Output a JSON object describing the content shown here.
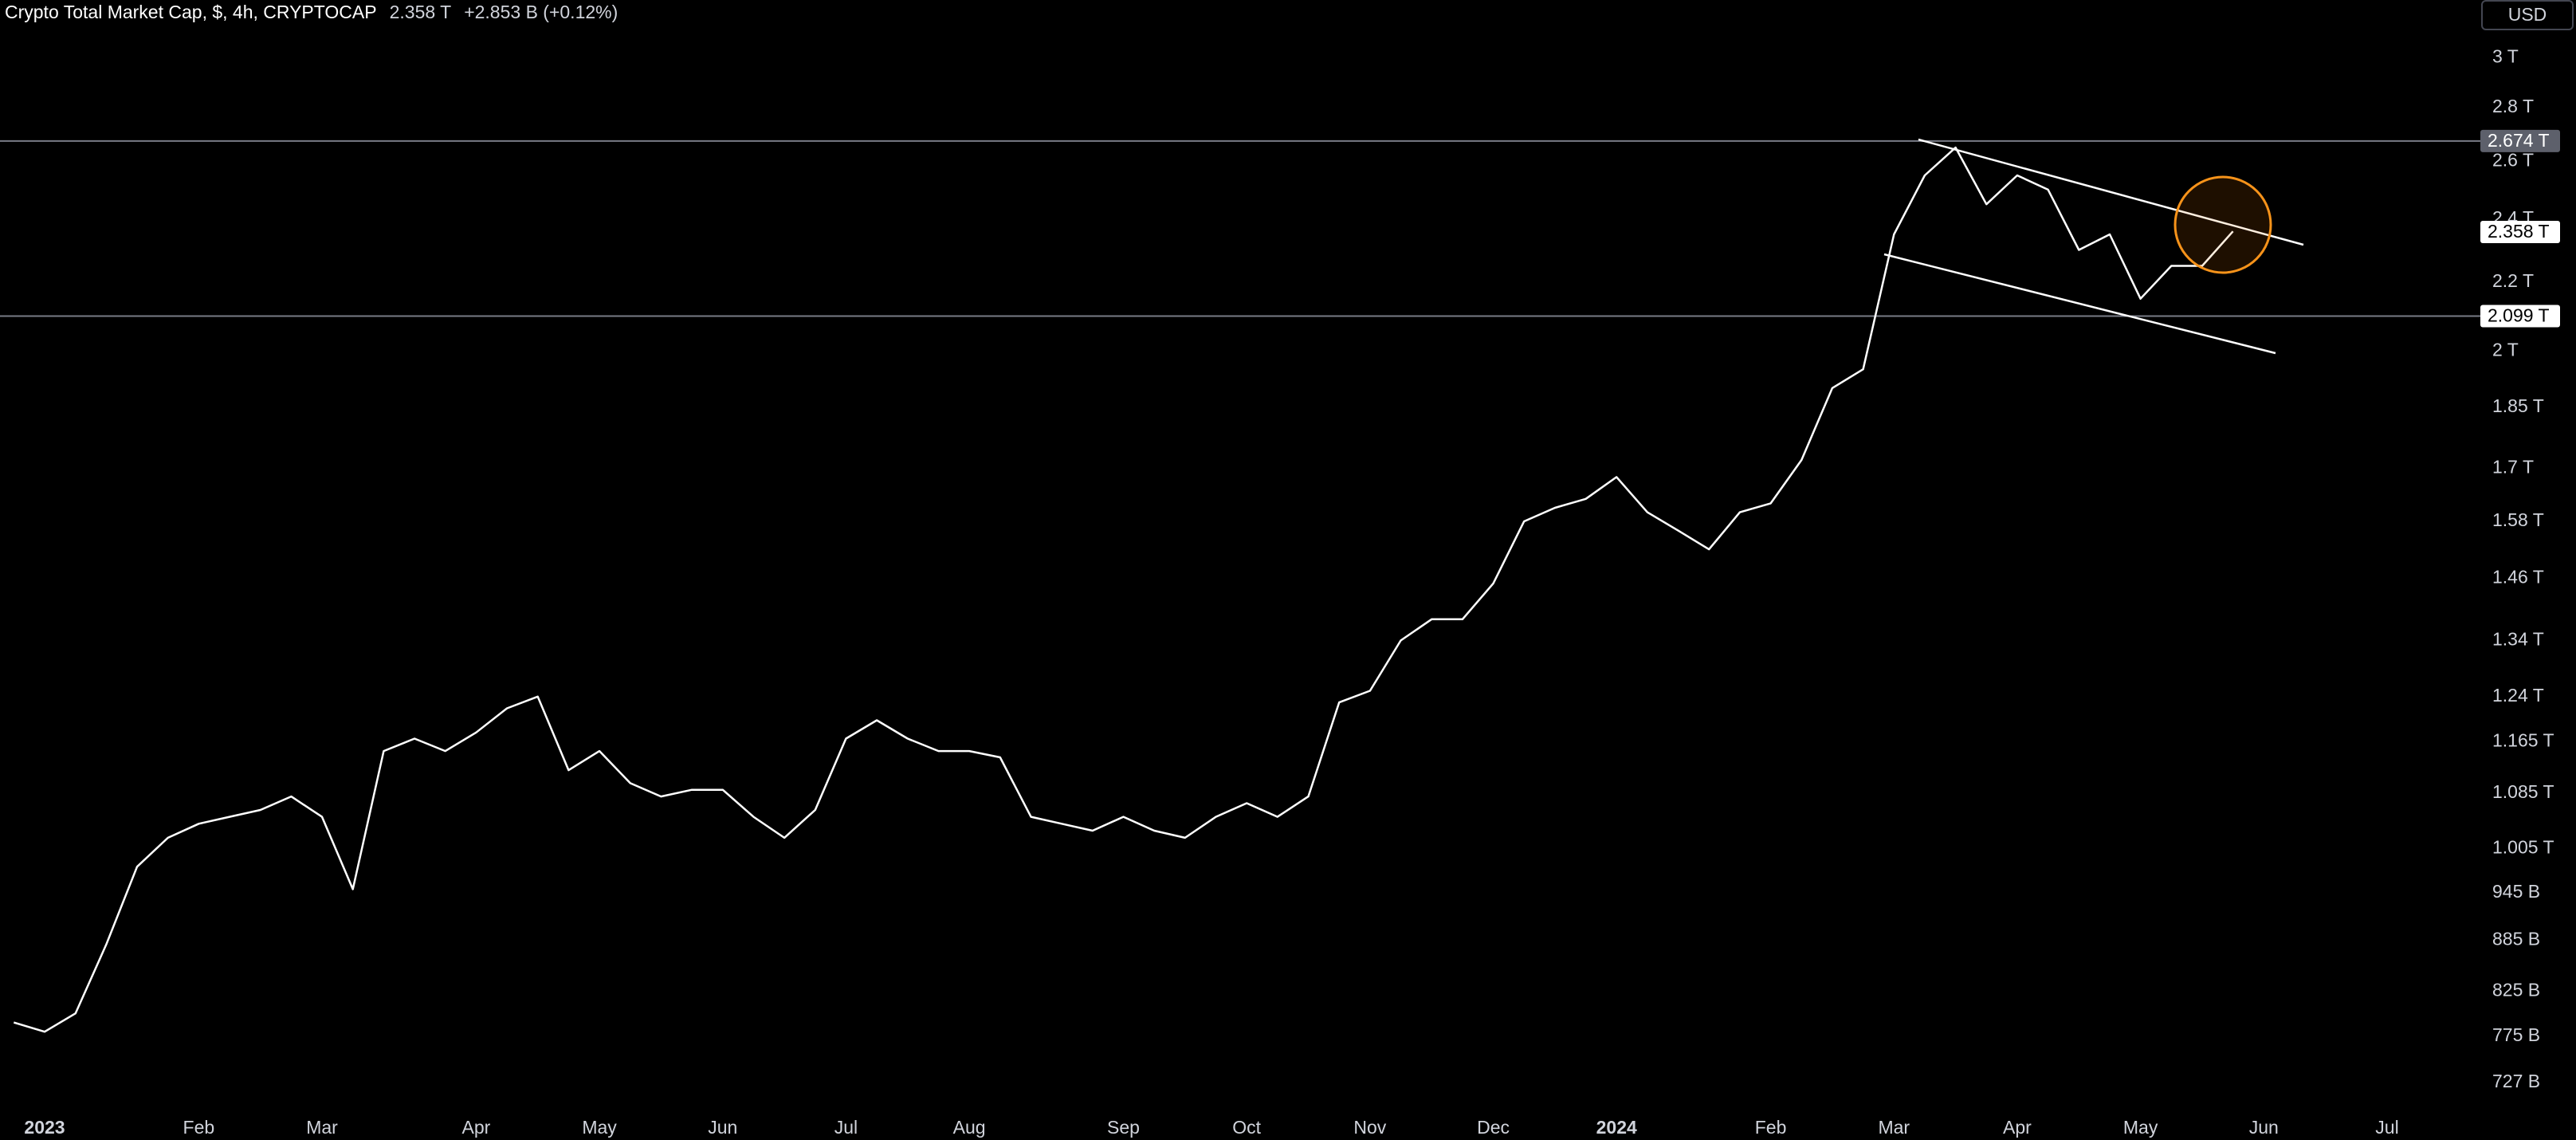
{
  "header": {
    "title": "Crypto Total Market Cap, $, 4h, CRYPTOCAP",
    "price": "2.358 T",
    "change": "+2.853 B (+0.12%)",
    "currency": "USD"
  },
  "chart_data": {
    "type": "line",
    "log_scale": true,
    "grid": false,
    "categories": [
      null,
      "2023",
      null,
      null,
      null,
      null,
      "Feb",
      null,
      null,
      null,
      "Mar",
      null,
      null,
      null,
      null,
      "Apr",
      null,
      null,
      null,
      "May",
      null,
      null,
      null,
      "Jun",
      null,
      null,
      null,
      "Jul",
      null,
      null,
      null,
      "Aug",
      null,
      null,
      null,
      null,
      "Sep",
      null,
      null,
      null,
      "Oct",
      null,
      null,
      null,
      "Nov",
      null,
      null,
      null,
      "Dec",
      null,
      null,
      null,
      "2024",
      null,
      null,
      null,
      null,
      "Feb",
      null,
      null,
      null,
      "Mar",
      null,
      null,
      null,
      "Apr",
      null,
      null,
      null,
      "May",
      null,
      null,
      null,
      "Jun",
      null,
      null,
      null,
      "Jul"
    ],
    "series": [
      {
        "name": "Crypto Total Market Cap",
        "color": "#ffffff",
        "values": [
          790000000000.0,
          780000000000.0,
          800000000000.0,
          880000000000.0,
          980000000000.0,
          1020000000000.0,
          1040000000000.0,
          1050000000000.0,
          1060000000000.0,
          1080000000000.0,
          1050000000000.0,
          950000000000.0,
          1150000000000.0,
          1170000000000.0,
          1150000000000.0,
          1180000000000.0,
          1220000000000.0,
          1240000000000.0,
          1120000000000.0,
          1150000000000.0,
          1100000000000.0,
          1080000000000.0,
          1090000000000.0,
          1090000000000.0,
          1050000000000.0,
          1020000000000.0,
          1060000000000.0,
          1170000000000.0,
          1200000000000.0,
          1170000000000.0,
          1150000000000.0,
          1150000000000.0,
          1140000000000.0,
          1050000000000.0,
          1040000000000.0,
          1030000000000.0,
          1050000000000.0,
          1030000000000.0,
          1020000000000.0,
          1050000000000.0,
          1070000000000.0,
          1050000000000.0,
          1080000000000.0,
          1230000000000.0,
          1250000000000.0,
          1340000000000.0,
          1380000000000.0,
          1380000000000.0,
          1450000000000.0,
          1580000000000.0,
          1610000000000.0,
          1630000000000.0,
          1680000000000.0,
          1600000000000.0,
          1560000000000.0,
          1520000000000.0,
          1600000000000.0,
          1620000000000.0,
          1720000000000.0,
          1900000000000.0,
          1950000000000.0,
          2350000000000.0,
          2550000000000.0,
          2650000000000.0,
          2450000000000.0,
          2550000000000.0,
          2500000000000.0,
          2300000000000.0,
          2350000000000.0,
          2150000000000.0,
          2250000000000.0,
          2250000000000.0,
          2360000000000.0,
          null,
          null,
          null,
          null,
          null
        ]
      }
    ],
    "ylim": [
      701000000000.0,
      3250000000000.0
    ],
    "yticks": [
      {
        "value": 3000000000000.0,
        "label": "3 T"
      },
      {
        "value": 2800000000000.0,
        "label": "2.8 T"
      },
      {
        "value": 2600000000000.0,
        "label": "2.6 T"
      },
      {
        "value": 2400000000000.0,
        "label": "2.4 T"
      },
      {
        "value": 2200000000000.0,
        "label": "2.2 T"
      },
      {
        "value": 2000000000000.0,
        "label": "2 T"
      },
      {
        "value": 1850000000000.0,
        "label": "1.85 T"
      },
      {
        "value": 1700000000000.0,
        "label": "1.7 T"
      },
      {
        "value": 1580000000000.0,
        "label": "1.58 T"
      },
      {
        "value": 1460000000000.0,
        "label": "1.46 T"
      },
      {
        "value": 1340000000000.0,
        "label": "1.34 T"
      },
      {
        "value": 1240000000000.0,
        "label": "1.24 T"
      },
      {
        "value": 1165000000000.0,
        "label": "1.165 T"
      },
      {
        "value": 1085000000000.0,
        "label": "1.085 T"
      },
      {
        "value": 1005000000000.0,
        "label": "1.005 T"
      },
      {
        "value": 945000000000.0,
        "label": "945 B"
      },
      {
        "value": 885000000000.0,
        "label": "885 B"
      },
      {
        "value": 825000000000.0,
        "label": "825 B"
      },
      {
        "value": 775000000000.0,
        "label": "775 B"
      },
      {
        "value": 727000000000.0,
        "label": "727 B"
      }
    ],
    "hlines": [
      {
        "value": 2674000000000.0,
        "label": "2.674 T",
        "color": "#787b86"
      },
      {
        "value": 2099000000000.0,
        "label": "2.099 T",
        "color": "#787b86"
      }
    ],
    "last_price": {
      "value": 2358000000000.0,
      "label": "2.358 T"
    }
  }
}
